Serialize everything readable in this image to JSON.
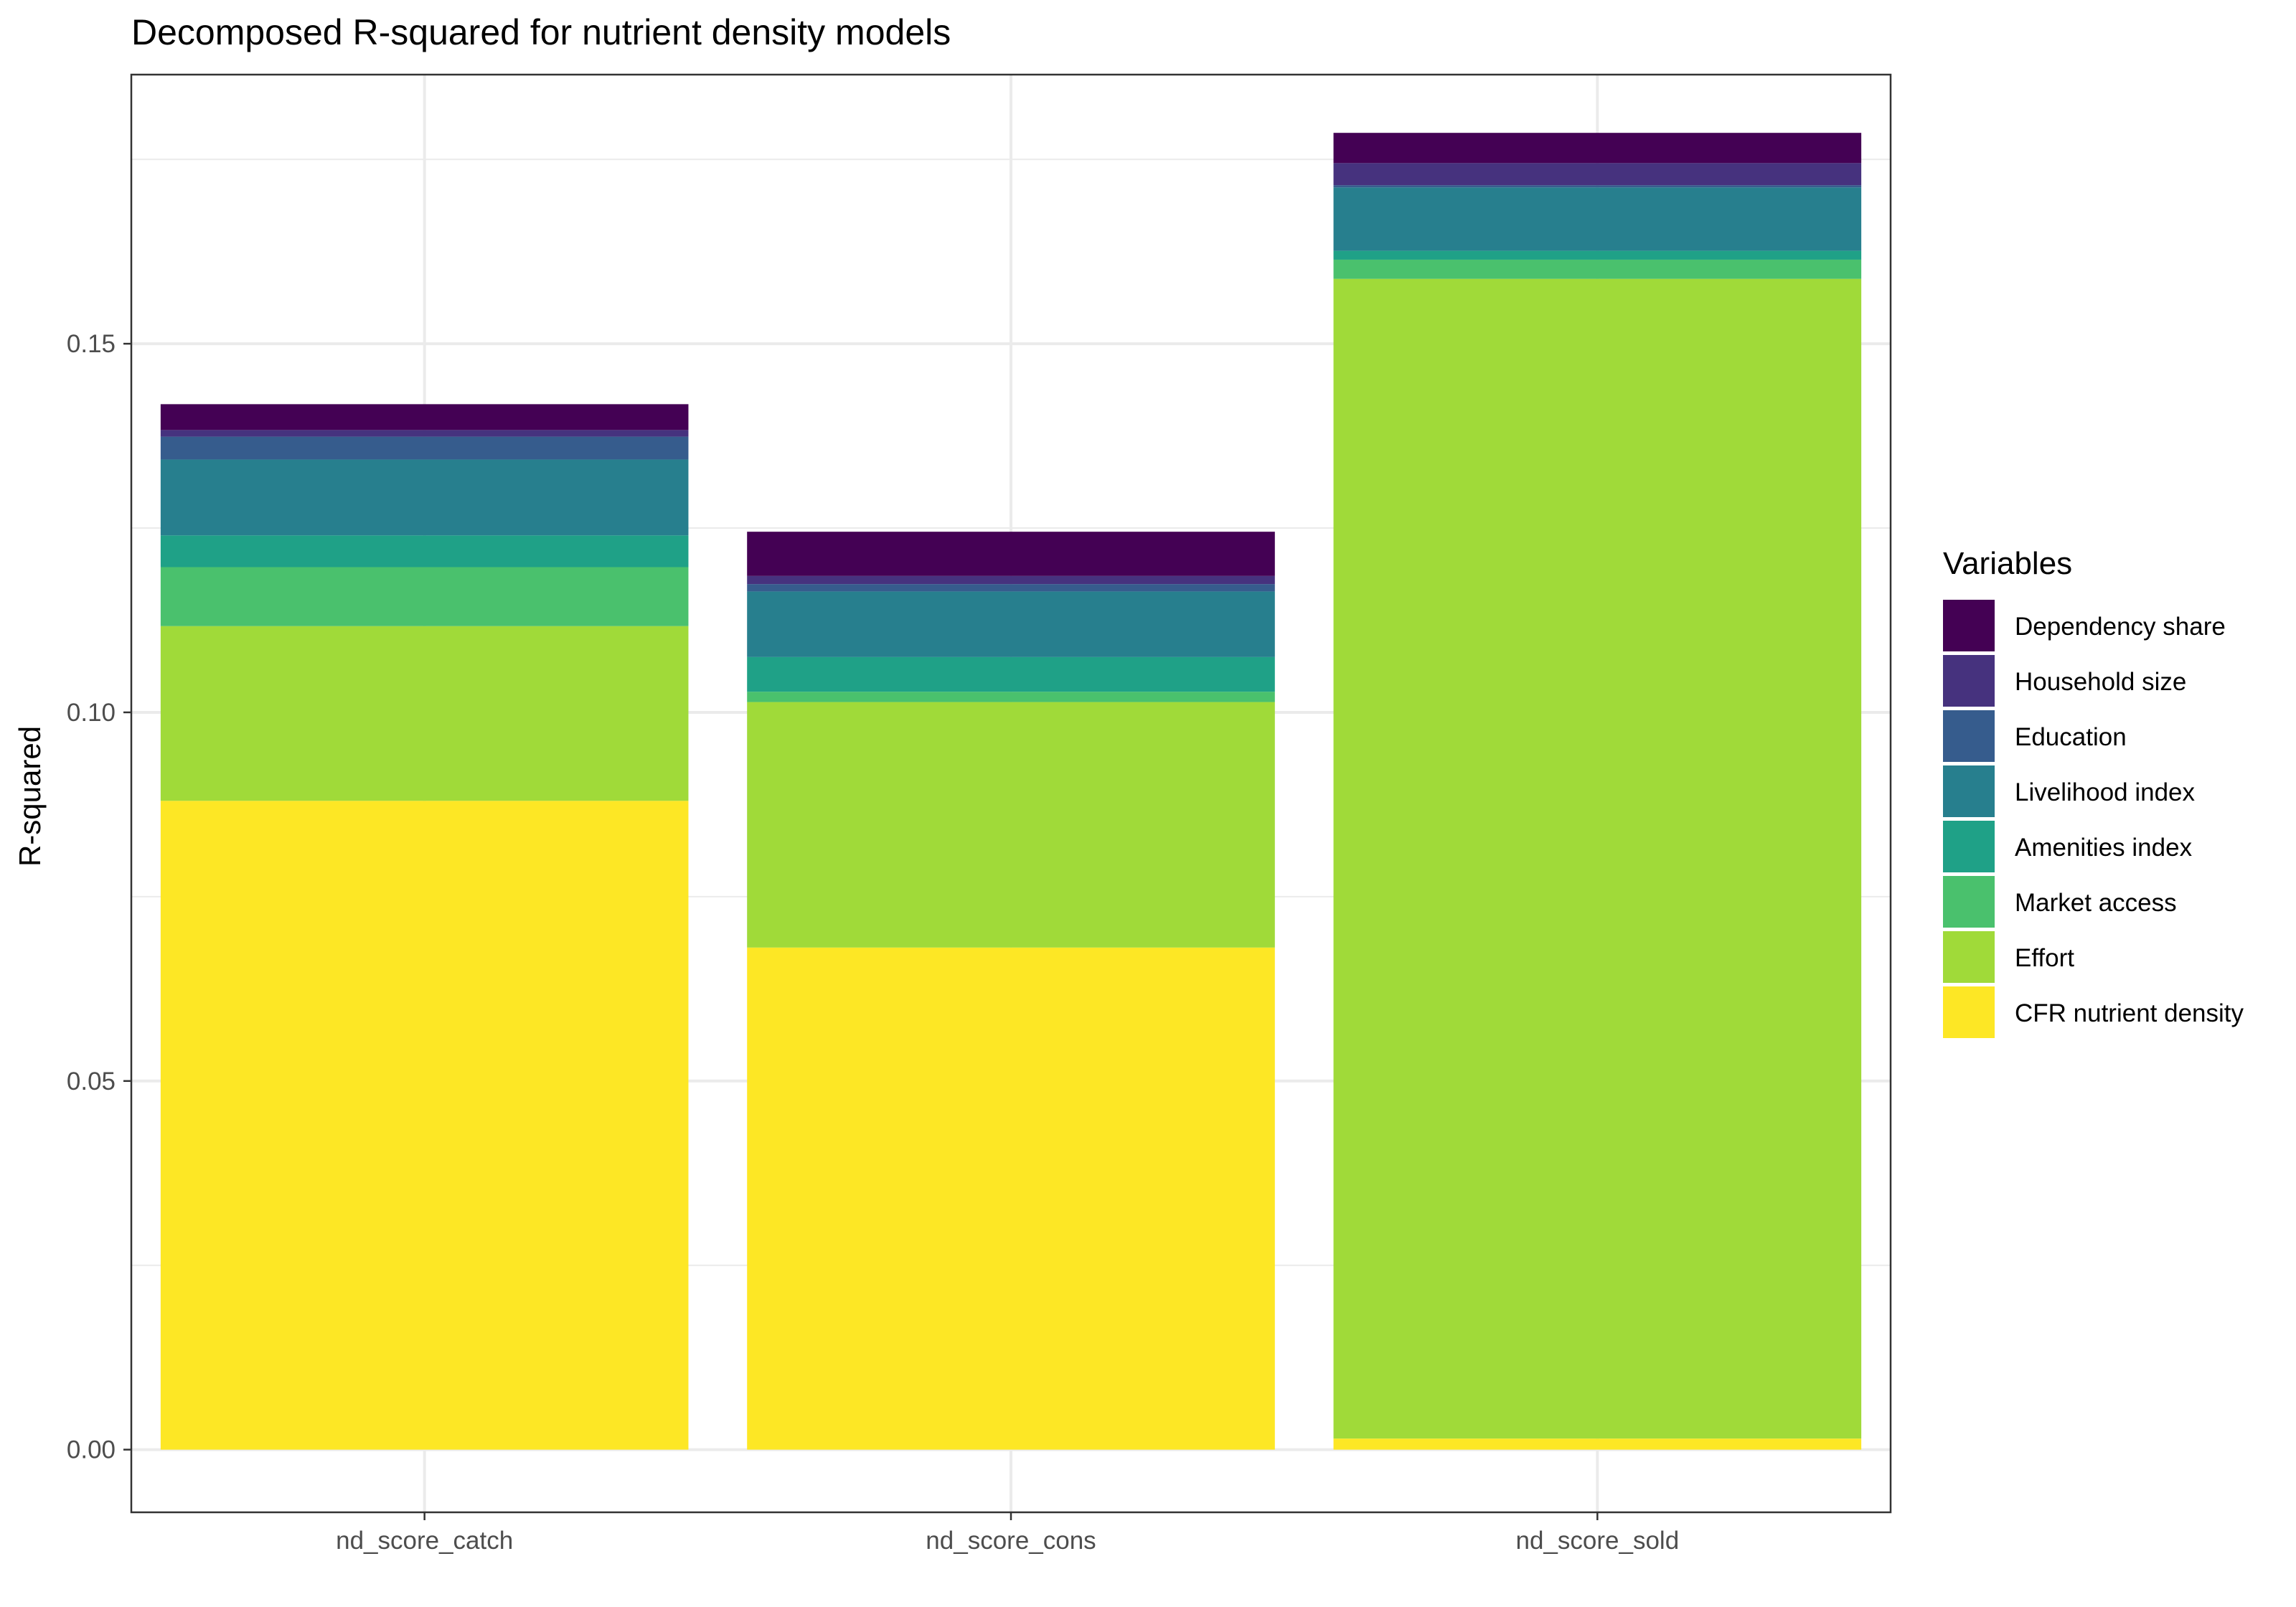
{
  "chart_data": {
    "type": "bar",
    "stacked": true,
    "title": "Decomposed R-squared for nutrient density models",
    "xlabel": "",
    "ylabel": "R-squared",
    "ylim": [
      -0.0085,
      0.1865
    ],
    "y_ticks": [
      0.0,
      0.05,
      0.1,
      0.15
    ],
    "y_tick_labels": [
      "0.00",
      "0.05",
      "0.10",
      "0.15"
    ],
    "grid": true,
    "legend_title": "Variables",
    "legend_position": "right",
    "categories": [
      "nd_score_catch",
      "nd_score_cons",
      "nd_score_sold"
    ],
    "series": [
      {
        "name": "CFR nutrient density",
        "color": "#FDE725",
        "values": [
          0.088,
          0.0681,
          0.0015
        ]
      },
      {
        "name": "Effort",
        "color": "#A0DA39",
        "values": [
          0.0237,
          0.0333,
          0.1573
        ]
      },
      {
        "name": "Market access",
        "color": "#4AC16D",
        "values": [
          0.008,
          0.0014,
          0.0026
        ]
      },
      {
        "name": "Amenities index",
        "color": "#1FA187",
        "values": [
          0.0043,
          0.0047,
          0.0012
        ]
      },
      {
        "name": "Livelihood index",
        "color": "#277F8E",
        "values": [
          0.0103,
          0.0089,
          0.0086
        ]
      },
      {
        "name": "Education",
        "color": "#365C8D",
        "values": [
          0.0031,
          0.001,
          0.0003
        ]
      },
      {
        "name": "Household size",
        "color": "#46327E",
        "values": [
          0.0009,
          0.0011,
          0.003
        ]
      },
      {
        "name": "Dependency share",
        "color": "#440154",
        "values": [
          0.0035,
          0.006,
          0.0041
        ]
      }
    ],
    "legend_order": [
      "Dependency share",
      "Household size",
      "Education",
      "Livelihood index",
      "Amenities index",
      "Market access",
      "Effort",
      "CFR nutrient density"
    ]
  }
}
